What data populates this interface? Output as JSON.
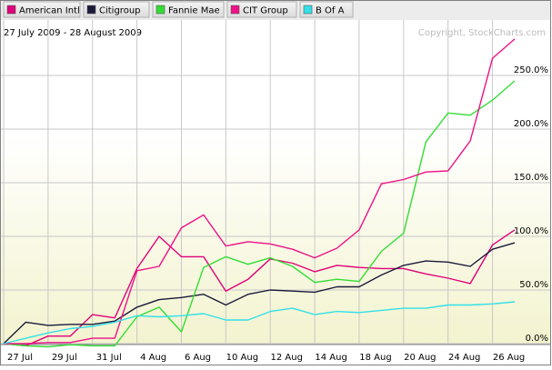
{
  "chart_data": {
    "type": "line",
    "date_range": "27 July 2009 - 28 August 2009",
    "copyright": "Copyright, StockCharts.com",
    "x_labels": [
      "27 Jul",
      "29 Jul",
      "31 Jul",
      "4 Aug",
      "6 Aug",
      "10 Aug",
      "12 Aug",
      "14 Aug",
      "18 Aug",
      "20 Aug",
      "24 Aug",
      "26 Aug"
    ],
    "x_label_indices": [
      0,
      2,
      4,
      6,
      8,
      10,
      12,
      14,
      16,
      18,
      20,
      22
    ],
    "y_ticks": [
      {
        "value": 0,
        "label": "0.0%"
      },
      {
        "value": 50,
        "label": "50.0%"
      },
      {
        "value": 100,
        "label": "100.0%"
      },
      {
        "value": 150,
        "label": "150.0%"
      },
      {
        "value": 200,
        "label": "200.0%"
      },
      {
        "value": 250,
        "label": "250.0%"
      }
    ],
    "ylim": [
      -5,
      290
    ],
    "point_count": 24,
    "series": [
      {
        "name": "American Intl",
        "color": "#e0007a",
        "values": [
          0,
          -2,
          7,
          7,
          27,
          24,
          70,
          100,
          81,
          81,
          49,
          60,
          79,
          75,
          67,
          73,
          71,
          70,
          70,
          65,
          61,
          56,
          92,
          106
        ]
      },
      {
        "name": "Citigroup",
        "color": "#1a1a3a",
        "values": [
          0,
          20,
          17,
          18,
          18,
          21,
          34,
          41,
          43,
          46,
          36,
          46,
          50,
          49,
          48,
          53,
          53,
          64,
          73,
          77,
          76,
          72,
          88,
          94
        ]
      },
      {
        "name": "Fannie Mae",
        "color": "#33dd33",
        "values": [
          0,
          -2,
          -3,
          -1,
          -2,
          -2,
          25,
          34,
          11,
          71,
          81,
          74,
          80,
          72,
          57,
          60,
          58,
          86,
          103,
          188,
          215,
          213,
          227,
          245
        ]
      },
      {
        "name": "CIT Group",
        "color": "#ee1188",
        "values": [
          0,
          0,
          1,
          1,
          5,
          5,
          68,
          72,
          108,
          120,
          91,
          95,
          93,
          88,
          80,
          89,
          106,
          149,
          153,
          160,
          161,
          189,
          266,
          284
        ]
      },
      {
        "name": "B Of A",
        "color": "#33e0e8",
        "values": [
          0,
          5,
          10,
          14,
          16,
          20,
          26,
          25,
          26,
          28,
          22,
          22,
          30,
          33,
          27,
          30,
          29,
          31,
          33,
          33,
          36,
          36,
          37,
          39
        ]
      }
    ],
    "grid": true,
    "legend": "top"
  }
}
